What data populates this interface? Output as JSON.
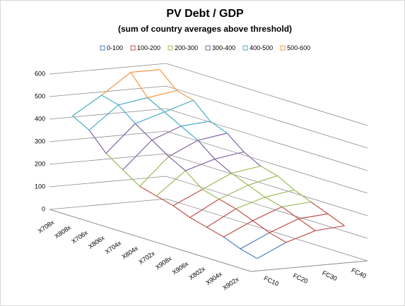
{
  "chart_data": {
    "type": "surface",
    "title": "PV Debt / GDP",
    "subtitle": "(sum of country averages above threshold)",
    "categories": [
      "X708x",
      "X808x",
      "X706x",
      "X806x",
      "X704x",
      "X804x",
      "X702x",
      "X908x",
      "X906x",
      "X802x",
      "X904x",
      "X902x"
    ],
    "series": [
      {
        "name": "FC10",
        "values": [
          420,
          380,
          300,
          250,
          200,
          180,
          160,
          130,
          110,
          90,
          60,
          40
        ]
      },
      {
        "name": "FC20",
        "values": [
          500,
          480,
          420,
          370,
          320,
          280,
          220,
          200,
          180,
          150,
          120,
          100
        ]
      },
      {
        "name": "FC30",
        "values": [
          590,
          500,
          460,
          420,
          380,
          320,
          280,
          250,
          220,
          200,
          170,
          140
        ]
      },
      {
        "name": "FC40",
        "values": [
          590,
          520,
          500,
          430,
          400,
          340,
          300,
          280,
          240,
          210,
          180,
          150
        ]
      }
    ],
    "bands": [
      {
        "name": "0-100",
        "color": "#4f81bd"
      },
      {
        "name": "100-200",
        "color": "#c0504d"
      },
      {
        "name": "200-300",
        "color": "#9bbb59"
      },
      {
        "name": "300-400",
        "color": "#8064a2"
      },
      {
        "name": "400-500",
        "color": "#4bacc6"
      },
      {
        "name": "500-600",
        "color": "#f79646"
      }
    ],
    "ylim": [
      0,
      600
    ],
    "yticks": [
      0,
      100,
      200,
      300,
      400,
      500,
      600
    ],
    "grid": true
  }
}
